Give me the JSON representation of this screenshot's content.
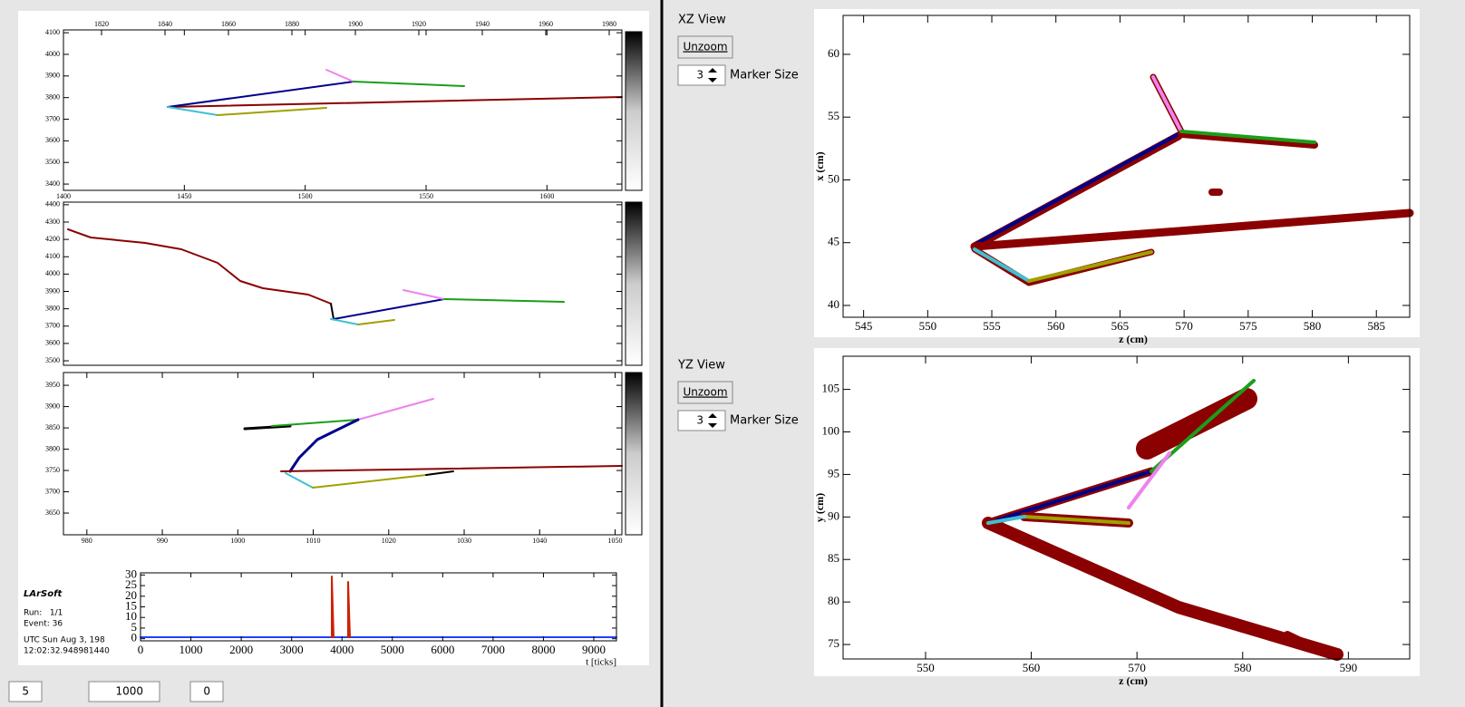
{
  "left": {
    "wire_views": [
      {
        "top_xticks": [
          1820,
          1840,
          1860,
          1880,
          1900,
          1920,
          1940,
          1960,
          1980
        ],
        "top_xlim": [
          1808,
          1984
        ],
        "xticks": [
          1400,
          1450,
          1500,
          1550,
          1600
        ],
        "xlim": [
          1400,
          1631
        ],
        "yticks": [
          3400,
          3500,
          3600,
          3700,
          3800,
          3900,
          4000,
          4100
        ],
        "ylim": [
          3371,
          4113
        ]
      },
      {
        "yticks": [
          3500,
          3600,
          3700,
          3800,
          3900,
          4000,
          4100,
          4200,
          4300,
          4400
        ],
        "ylim": [
          3474,
          4415
        ]
      },
      {
        "xticks": [
          980,
          990,
          1000,
          1010,
          1020,
          1030,
          1040,
          1050
        ],
        "xlim": [
          976.9,
          1050.9
        ],
        "yticks": [
          3650,
          3700,
          3750,
          3800,
          3850,
          3900,
          3950
        ],
        "ylim": [
          3599,
          3980
        ]
      }
    ],
    "info": {
      "title": "LArSoft",
      "run": "Run:   1/1",
      "event": "Event: 36",
      "date": "UTC Sun Aug 3, 198",
      "time": "12:02:32.948981440"
    },
    "waveform": {
      "xticks": [
        0,
        1000,
        2000,
        3000,
        4000,
        5000,
        6000,
        7000,
        8000,
        9000
      ],
      "xlim": [
        0,
        9450
      ],
      "yticks": [
        0,
        5,
        10,
        15,
        20,
        25,
        30
      ],
      "ylim": [
        -1,
        31
      ],
      "xlabel": "t [ticks]"
    }
  },
  "right": {
    "views": [
      {
        "title": "XZ View",
        "button": "Unzoom",
        "marker_size": 3,
        "marker_label": "Marker Size",
        "xticks": [
          545,
          550,
          555,
          560,
          565,
          570,
          575,
          580,
          585
        ],
        "xlim": [
          543.4,
          587.6
        ],
        "yticks": [
          40,
          45,
          50,
          55,
          60
        ],
        "ylim": [
          39.06,
          63.1
        ],
        "xlabel": "z (cm)",
        "ylabel": "x (cm)"
      },
      {
        "title": "YZ View",
        "button": "Unzoom",
        "marker_size": 3,
        "marker_label": "Marker Size",
        "xticks": [
          550,
          560,
          570,
          580,
          590
        ],
        "xlim": [
          542.2,
          595.8
        ],
        "yticks": [
          75,
          80,
          85,
          90,
          95,
          100,
          105
        ],
        "ylim": [
          73.3,
          108.9
        ],
        "xlabel": "z (cm)",
        "ylabel": "y (cm)"
      }
    ]
  },
  "controls": [
    5,
    1000,
    0
  ]
}
